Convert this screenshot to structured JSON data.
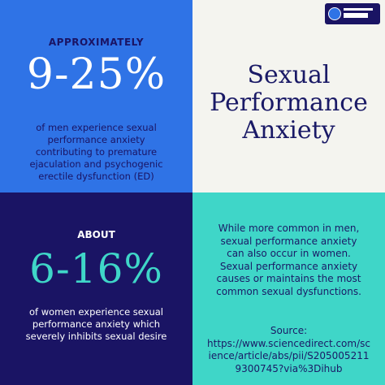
{
  "top_left": {
    "label": "APPROXIMATELY",
    "stat": "9-25%",
    "description": "of men experience sexual performance anxiety contributing to premature ejaculation and psychogenic erectile dysfunction (ED)",
    "bg_color": "#2f73e6"
  },
  "top_right": {
    "title": "Sexual Performance Anxiety",
    "bg_color": "#f4f4ef",
    "logo_text": "DON'T PANIC DO THIS!"
  },
  "bottom_left": {
    "label": "ABOUT",
    "stat": "6-16%",
    "description": "of women experience sexual performance anxiety which severely inhibits sexual desire",
    "bg_color": "#1a1464"
  },
  "bottom_right": {
    "body": "While more common in men, sexual performance anxiety can also occur in women. Sexual performance anxiety causes or maintains the most common sexual dysfunctions.",
    "source_label": "Source:",
    "source_url": "https://www.sciencedirect.com/science/article/abs/pii/S2050052119300745?via%3Dihub",
    "bg_color": "#3fd6c8"
  }
}
